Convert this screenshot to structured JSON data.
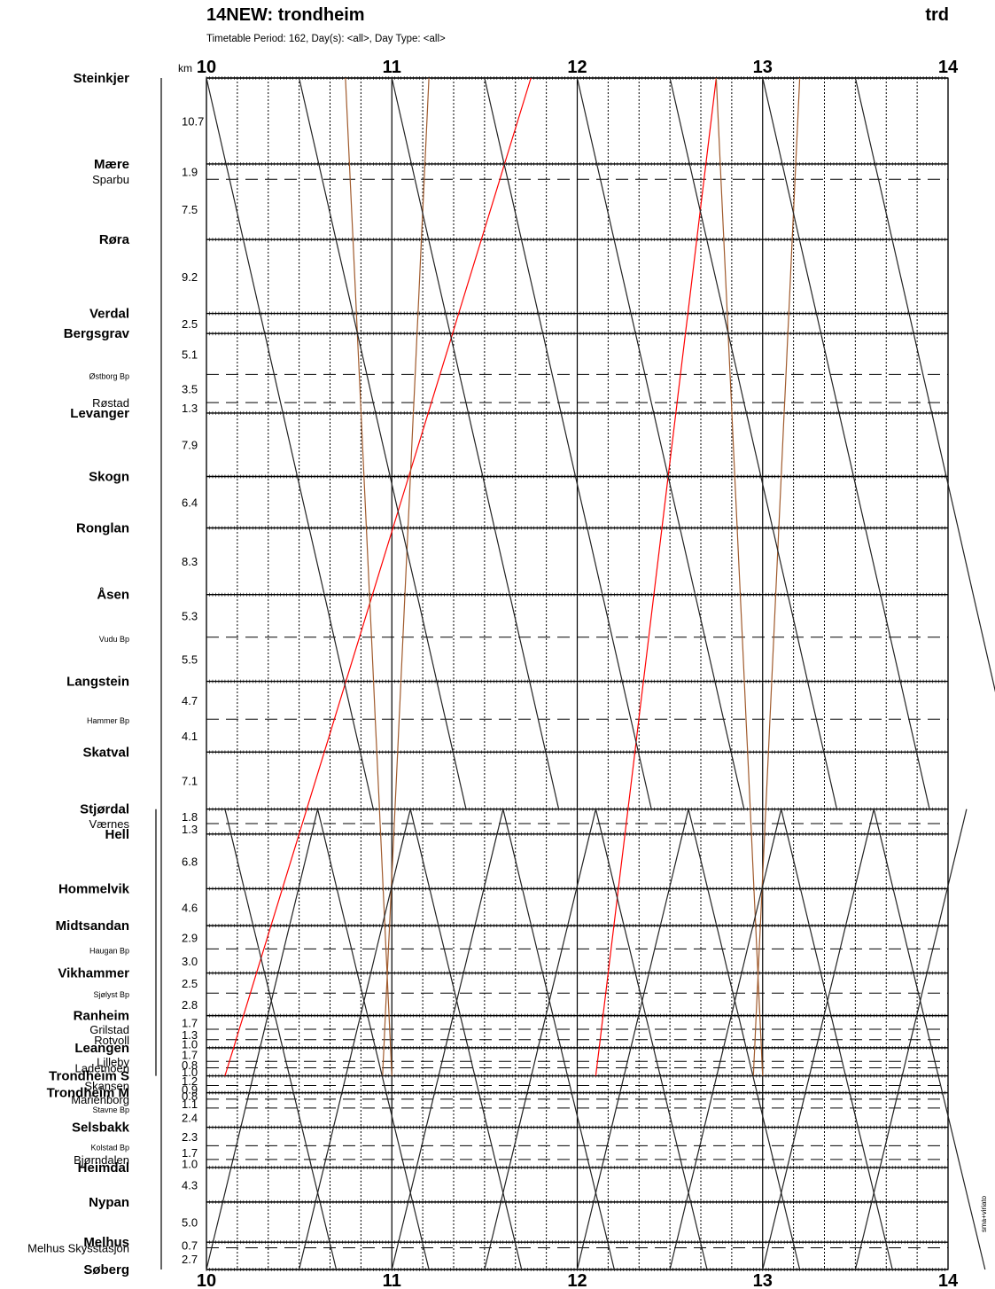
{
  "header": {
    "title": "14NEW: trondheim",
    "code": "trd",
    "subtitle": "Timetable Period: 162, Day(s): <all>, Day Type: <all>"
  },
  "footer": {
    "credit": "sma+viriato"
  },
  "chart_data": {
    "type": "line",
    "title": "14NEW: trondheim",
    "x_unit_label": "km",
    "x_ticks": [
      "10",
      "11",
      "12",
      "13",
      "14"
    ],
    "xlim": [
      10,
      14
    ],
    "stations": [
      {
        "name": "Steinkjer",
        "major": true,
        "km_to_next": "10.7"
      },
      {
        "name": "Mære",
        "major": true,
        "km_to_next": "1.9"
      },
      {
        "name": "Sparbu",
        "major": false,
        "km_to_next": "7.5"
      },
      {
        "name": "Røra",
        "major": true,
        "km_to_next": "9.2"
      },
      {
        "name": "Verdal",
        "major": true,
        "km_to_next": "2.5"
      },
      {
        "name": "Bergsgrav",
        "major": true,
        "km_to_next": "5.1"
      },
      {
        "name": "Østborg Bp",
        "major": false,
        "small": true,
        "km_to_next": "3.5"
      },
      {
        "name": "Røstad",
        "major": false,
        "km_to_next": "1.3"
      },
      {
        "name": "Levanger",
        "major": true,
        "km_to_next": "7.9"
      },
      {
        "name": "Skogn",
        "major": true,
        "km_to_next": "6.4"
      },
      {
        "name": "Ronglan",
        "major": true,
        "km_to_next": "8.3"
      },
      {
        "name": "Åsen",
        "major": true,
        "km_to_next": "5.3"
      },
      {
        "name": "Vudu Bp",
        "major": false,
        "small": true,
        "km_to_next": "5.5"
      },
      {
        "name": "Langstein",
        "major": true,
        "km_to_next": "4.7"
      },
      {
        "name": "Hammer Bp",
        "major": false,
        "small": true,
        "km_to_next": "4.1"
      },
      {
        "name": "Skatval",
        "major": true,
        "km_to_next": "7.1"
      },
      {
        "name": "Stjørdal",
        "major": true,
        "km_to_next": "1.8"
      },
      {
        "name": "Værnes",
        "major": false,
        "km_to_next": "1.3"
      },
      {
        "name": "Hell",
        "major": true,
        "km_to_next": "6.8"
      },
      {
        "name": "Hommelvik",
        "major": true,
        "km_to_next": "4.6"
      },
      {
        "name": "Midtsandan",
        "major": true,
        "km_to_next": "2.9"
      },
      {
        "name": "Haugan Bp",
        "major": false,
        "small": true,
        "km_to_next": "3.0"
      },
      {
        "name": "Vikhammer",
        "major": true,
        "km_to_next": "2.5"
      },
      {
        "name": "Sjølyst Bp",
        "major": false,
        "small": true,
        "km_to_next": "2.8"
      },
      {
        "name": "Ranheim",
        "major": true,
        "km_to_next": "1.7"
      },
      {
        "name": "Grilstad",
        "major": false,
        "km_to_next": "1.3"
      },
      {
        "name": "Rotvoll",
        "major": false,
        "km_to_next": "1.0"
      },
      {
        "name": "Leangen",
        "major": true,
        "km_to_next": "1.7"
      },
      {
        "name": "Lilleby",
        "major": false,
        "km_to_next": "0.8"
      },
      {
        "name": "Lademoen",
        "major": false,
        "km_to_next": "1.0"
      },
      {
        "name": "Trondheim S",
        "major": true,
        "km_to_next": "1.2"
      },
      {
        "name": "Skansen",
        "major": false,
        "km_to_next": "0.9"
      },
      {
        "name": "Trondheim M",
        "major": true,
        "km_to_next": "0.8"
      },
      {
        "name": "Marienborg",
        "major": false,
        "km_to_next": "1.1"
      },
      {
        "name": "Stavne Bp",
        "major": false,
        "small": true,
        "km_to_next": "2.4"
      },
      {
        "name": "Selsbakk",
        "major": true,
        "km_to_next": "2.3"
      },
      {
        "name": "Kolstad Bp",
        "major": false,
        "small": true,
        "km_to_next": "1.7"
      },
      {
        "name": "Bjørndalen",
        "major": false,
        "km_to_next": "1.0"
      },
      {
        "name": "Heimdal",
        "major": true,
        "km_to_next": "4.3"
      },
      {
        "name": "Nypan",
        "major": true,
        "km_to_next": "5.0"
      },
      {
        "name": "Melhus",
        "major": true,
        "km_to_next": "0.7"
      },
      {
        "name": "Melhus Skysstasjon",
        "major": false,
        "km_to_next": "2.7"
      },
      {
        "name": "Søberg",
        "major": true,
        "km_to_next": ""
      }
    ],
    "train_series": [
      {
        "name": "",
        "color": "#ff0000",
        "runs": [
          {
            "from": 0,
            "to": 30,
            "t_start": 11.75,
            "t_end": 10.1
          },
          {
            "from": 0,
            "to": 30,
            "t_start": 12.75,
            "t_end": 12.1
          }
        ]
      },
      {
        "name": "",
        "color": "#a05a2c",
        "runs": [
          {
            "from": 0,
            "to": 30,
            "t_start": 10.75,
            "t_end": 11.0
          },
          {
            "from": 0,
            "to": 30,
            "t_start": 12.75,
            "t_end": 13.0
          },
          {
            "from": 0,
            "to": 30,
            "t_start": 11.2,
            "t_end": 10.95
          },
          {
            "from": 0,
            "to": 30,
            "t_start": 13.2,
            "t_end": 12.95
          }
        ]
      },
      {
        "name": "",
        "color": "#000000",
        "runs": []
      }
    ],
    "grid": true
  }
}
